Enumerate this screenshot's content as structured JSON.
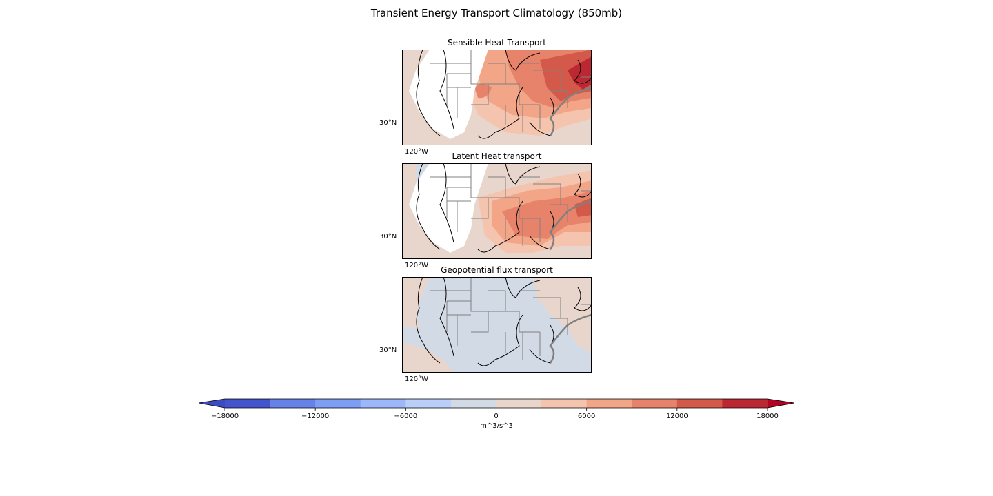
{
  "figure": {
    "title": "Transient Energy Transport Climatology (850mb)"
  },
  "panels": [
    {
      "title": "Sensible Heat Transport",
      "lat_label": "30°N",
      "lon_label": "120°W"
    },
    {
      "title": "Latent Heat transport",
      "lat_label": "30°N",
      "lon_label": "120°W"
    },
    {
      "title": "Geopotential flux transport",
      "lat_label": "30°N",
      "lon_label": "120°W"
    }
  ],
  "colorbar": {
    "label": "m^3/s^3",
    "ticks": [
      "−18000",
      "−12000",
      "−6000",
      "0",
      "6000",
      "12000",
      "18000"
    ],
    "tick_values": [
      -18000,
      -12000,
      -6000,
      0,
      6000,
      12000,
      18000
    ],
    "levels": [
      -18000,
      -15000,
      -12000,
      -9000,
      -6000,
      -3000,
      0,
      3000,
      6000,
      9000,
      12000,
      15000,
      18000
    ],
    "colors": [
      "#4355cc",
      "#6681e8",
      "#7e9ef5",
      "#9cb8fb",
      "#b9cffa",
      "#d2dae6",
      "#e8d6cc",
      "#f4c4ae",
      "#f2a587",
      "#e7836b",
      "#d35a4a",
      "#bb2832"
    ],
    "extend_colors": {
      "under": "#3b4cc0",
      "over": "#b40426"
    },
    "colormap": "coolwarm",
    "extend": "both"
  },
  "map_colors": {
    "state_lines": "#808080",
    "coastlines": "#000000",
    "land_mask": "#ffffff"
  }
}
